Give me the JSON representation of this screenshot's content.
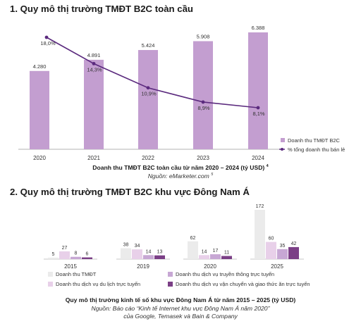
{
  "section1": {
    "heading": "1. Quy mô thị trường TMĐT B2C toàn cầu",
    "caption_title": "Doanh thu TMĐT B2C toàn cầu từ năm 2020 – 2024 (tỷ USD)",
    "caption_title_note": "4",
    "caption_source": "Nguồn: eMarketer.com",
    "caption_source_note": "5"
  },
  "section2": {
    "heading": "2. Quy mô thị trường TMĐT B2C khu vực Đông Nam Á",
    "caption_title": "Quy mô thị trường kinh tế số khu vực Đông Nam Á từ năm 2015 – 2025 (tỷ USD)",
    "caption_source_1": "Nguồn: Báo cáo “Kinh tế Internet khu vực Đông Nam Á năm 2020”",
    "caption_source_2": "của Google, Temasek và Bain & Company"
  },
  "colors": {
    "bar1": "#c39ed0",
    "line1": "#5b2a7e",
    "s_tmdt": "#ebebeb",
    "s_dulich": "#e8d0e9",
    "s_truyenthong": "#c7a7d4",
    "s_vanchuyen": "#7b3f86"
  },
  "chart_data": [
    {
      "type": "bar",
      "categories": [
        "2020",
        "2021",
        "2022",
        "2023",
        "2024"
      ],
      "series": [
        {
          "name": "Doanh thu TMĐT B2C",
          "values": [
            4280,
            4891,
            5424,
            5908,
            6388
          ],
          "labels": [
            "4.280",
            "4.891",
            "5.424",
            "5.908",
            "6.388"
          ]
        },
        {
          "name": "% tổng doanh thu bán lẻ",
          "type": "line",
          "values": [
            18.0,
            14.3,
            10.9,
            8.9,
            8.1
          ],
          "labels": [
            "18,0%",
            "14,3%",
            "10,9%",
            "8,9%",
            "8,1%"
          ]
        }
      ],
      "legend": "right"
    },
    {
      "type": "bar",
      "categories": [
        "2015",
        "2019",
        "2020",
        "2025"
      ],
      "series": [
        {
          "name": "Doanh thu TMĐT",
          "values": [
            5,
            38,
            62,
            172
          ]
        },
        {
          "name": "Doanh thu dịch vụ du lịch trực tuyến",
          "values": [
            27,
            34,
            14,
            60
          ]
        },
        {
          "name": "Doanh thu dịch vụ truyền thông trực tuyến",
          "values": [
            8,
            14,
            17,
            35
          ]
        },
        {
          "name": "Doanh thu dịch vụ vận chuyển và giao thức ăn trực tuyến",
          "values": [
            6,
            13,
            11,
            42
          ]
        }
      ],
      "legend": "bottom"
    }
  ]
}
